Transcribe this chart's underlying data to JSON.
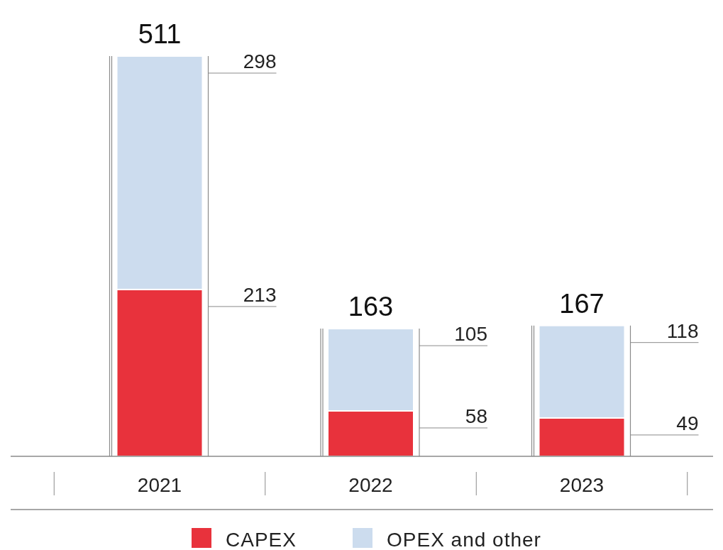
{
  "chart_data": {
    "type": "bar",
    "stacked": true,
    "categories": [
      "2021",
      "2022",
      "2023"
    ],
    "series": [
      {
        "name": "CAPEX",
        "color": "#e8323c",
        "values": [
          213,
          58,
          49
        ]
      },
      {
        "name": "OPEX and other",
        "color": "#ccdcee",
        "values": [
          298,
          105,
          118
        ]
      }
    ],
    "data_labels": true,
    "totals": [
      "511",
      "163",
      "167"
    ],
    "legend": "bottom"
  }
}
